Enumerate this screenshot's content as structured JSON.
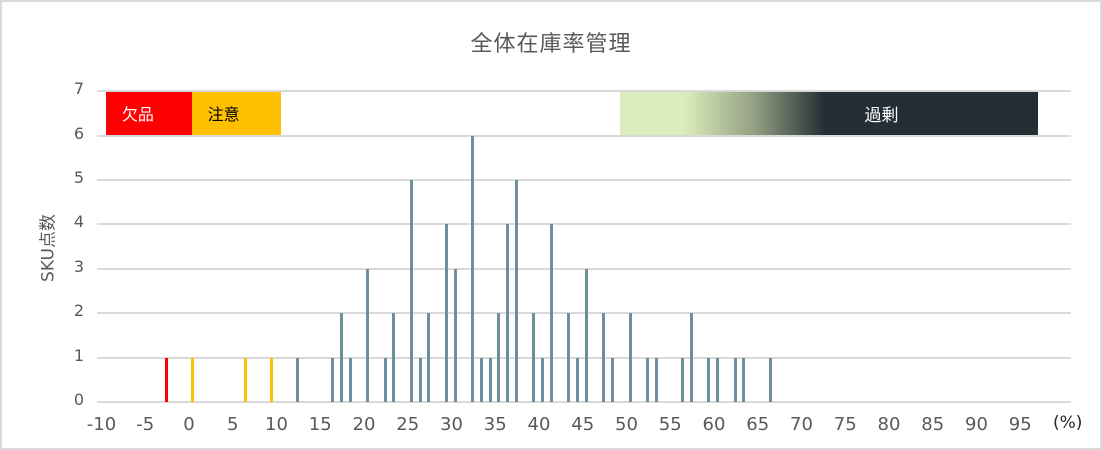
{
  "chart_data": {
    "type": "bar",
    "title": "全体在庫率管理",
    "xlabel": "(%)",
    "ylabel": "SKU点数",
    "xlim": [
      -10,
      100
    ],
    "ylim": [
      0,
      7
    ],
    "x_tick_step": 5,
    "x_ticks": [
      "-10",
      "-5",
      "0",
      "5",
      "10",
      "15",
      "20",
      "25",
      "30",
      "35",
      "40",
      "45",
      "50",
      "55",
      "60",
      "65",
      "70",
      "75",
      "80",
      "85",
      "90",
      "95"
    ],
    "y_ticks": [
      "0",
      "1",
      "2",
      "3",
      "4",
      "5",
      "6",
      "7"
    ],
    "grid": "horizontal",
    "legend": "none",
    "x": [
      -3,
      0,
      6,
      9,
      12,
      16,
      17,
      18,
      20,
      22,
      23,
      25,
      26,
      27,
      29,
      30,
      32,
      33,
      34,
      35,
      36,
      37,
      39,
      40,
      41,
      43,
      44,
      45,
      47,
      48,
      50,
      52,
      53,
      56,
      57,
      59,
      60,
      62,
      63,
      66
    ],
    "values": [
      1,
      1,
      1,
      1,
      1,
      1,
      2,
      1,
      3,
      1,
      2,
      5,
      1,
      2,
      4,
      3,
      6,
      1,
      1,
      2,
      4,
      5,
      2,
      1,
      4,
      2,
      1,
      3,
      2,
      1,
      2,
      1,
      1,
      1,
      2,
      1,
      1,
      1,
      1,
      1
    ],
    "bar_color_rules": [
      {
        "range": [
          -10,
          -1
        ],
        "color": "#ff0000",
        "zone": "欠品"
      },
      {
        "range": [
          0,
          10
        ],
        "color": "#ffc000",
        "zone": "注意"
      },
      {
        "range": [
          11,
          100
        ],
        "color": "#6e8f9c",
        "zone": "normal"
      }
    ],
    "annotations": [
      {
        "label": "欠品",
        "x_from": -9.5,
        "x_to": 0.3,
        "y_from": 6,
        "y_to": 7,
        "fill": "#ff0000",
        "text_color": "#ffffff"
      },
      {
        "label": "注意",
        "x_from": 0.3,
        "x_to": 10.5,
        "y_from": 6,
        "y_to": 7,
        "fill": "#ffc000",
        "text_color": "#000000"
      },
      {
        "label": "過剰",
        "x_from": 49.3,
        "x_to": 97,
        "y_from": 6,
        "y_to": 7,
        "fill_gradient": [
          "#dcedbc",
          "#232e35"
        ],
        "text_color": "#ffffff"
      }
    ]
  },
  "colors": {
    "gridline": "#d9d9d9",
    "text": "#595959",
    "frame": "#d9d9d9"
  }
}
